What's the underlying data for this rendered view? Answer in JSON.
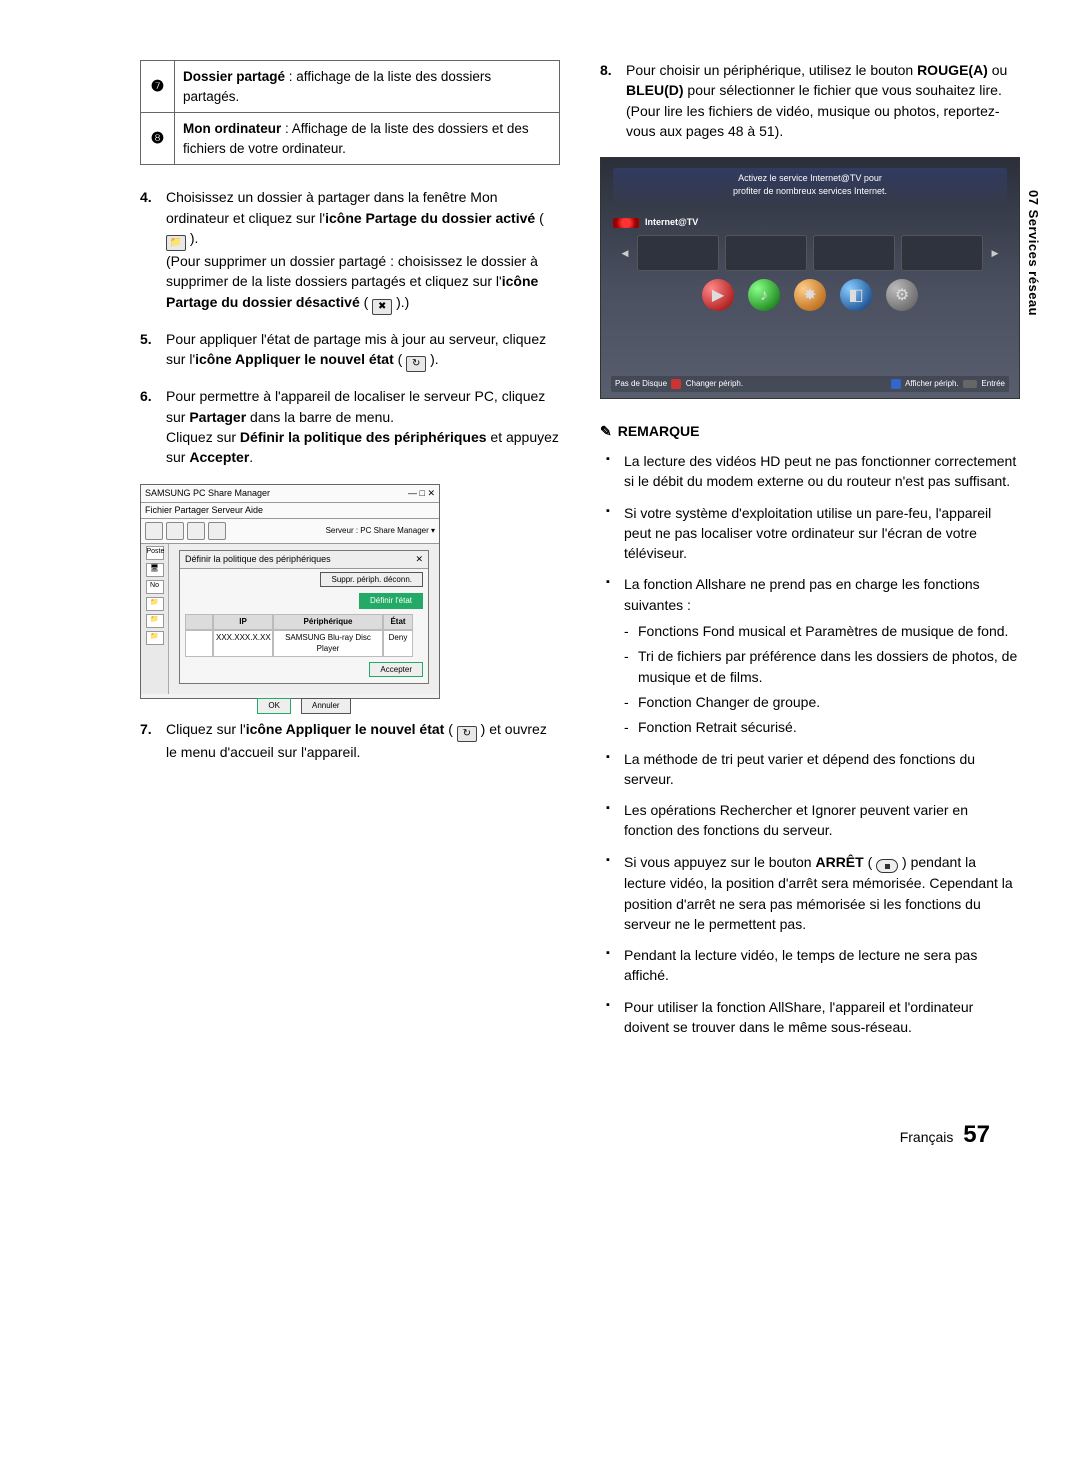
{
  "sideTab": "07  Services réseau",
  "leftTable": {
    "r1": {
      "num": "❼",
      "text_before": "Dossier partagé",
      "text_after": " : affichage de la liste des dossiers partagés."
    },
    "r2": {
      "num": "❽",
      "text_before": "Mon ordinateur",
      "text_after": " : Affichage de la liste des dossiers et des fichiers de votre ordinateur."
    }
  },
  "ol4": {
    "l1": "Choisissez un dossier à partager dans la fenêtre Mon ordinateur et cliquez sur l'",
    "b1": "icône Partage du dossier activé",
    "l2": "(Pour supprimer un dossier partagé : choisissez le dossier à supprimer de la liste dossiers partagés et cliquez sur l'",
    "b2": "icône Partage du dossier désactivé"
  },
  "ol5": {
    "l1": "Pour appliquer l'état de partage mis à jour au serveur, cliquez sur l'",
    "b1": "icône Appliquer le nouvel état"
  },
  "ol6": {
    "l1": "Pour permettre à l'appareil de localiser le serveur PC, cliquez sur ",
    "b1": "Partager",
    "l2": " dans la barre de menu.",
    "l3": "Cliquez sur ",
    "b2": "Définir la politique des périphériques",
    "l4": " et appuyez sur ",
    "b3": "Accepter",
    "l5": "."
  },
  "ol7": {
    "l1": "Cliquez sur l'",
    "b1": "icône Appliquer le nouvel état",
    "l2": " et ouvrez le menu d'accueil sur l'appareil."
  },
  "share": {
    "title": "SAMSUNG PC Share Manager",
    "menu": "Fichier  Partager  Serveur  Aide",
    "server": "Serveur : PC Share Manager  ▾",
    "sidebar": {
      "a": "Poste",
      "b": "No"
    },
    "dialogTitle": "Définir la politique des périphériques",
    "suppr": "Suppr. périph. déconn.",
    "defEtat": "Définir l'état",
    "hdr": {
      "c1": "",
      "c2": "IP",
      "c3": "Périphérique",
      "c4": "État"
    },
    "row": {
      "c1": "",
      "c2": "XXX.XXX.X.XX",
      "c3": "SAMSUNG Blu-ray Disc Player",
      "c4": "Deny"
    },
    "accepter": "Accepter",
    "ok": "OK",
    "annuler": "Annuler"
  },
  "ol8": {
    "l1": "Pour choisir un périphérique, utilisez le bouton ",
    "b1": "ROUGE(A)",
    "l2": " ou ",
    "b2": "BLEU(D)",
    "l3": " pour sélectionner le fichier que vous souhaitez lire.",
    "l4": "(Pour lire les fichiers de vidéo, musique ou photos, reportez-vous aux pages 48 à 51)."
  },
  "tv": {
    "promo1": "Activez le service Internet@TV pour",
    "promo2": "profiter de nombreux services Internet.",
    "itv": "Internet@TV",
    "barL": "Pas de Disque",
    "barM": "Changer périph.",
    "barR1": "Afficher périph.",
    "barR2": "Entrée"
  },
  "remarkTitle": "REMARQUE",
  "rm": {
    "b1": "La lecture des vidéos HD peut ne pas fonctionner correctement si le débit du modem externe ou du routeur n'est pas suffisant.",
    "b2": "Si votre système d'exploitation utilise un pare-feu, l'appareil peut ne pas localiser votre ordinateur sur l'écran de votre téléviseur.",
    "b3": "La fonction Allshare ne prend pas en charge les fonctions suivantes :",
    "s1": "Fonctions Fond musical et Paramètres de musique de fond.",
    "s2": "Tri de fichiers par préférence dans les dossiers de photos, de musique et de films.",
    "s3": "Fonction Changer de groupe.",
    "s4": "Fonction Retrait sécurisé.",
    "b4": "La méthode de tri peut varier et dépend des fonctions du serveur.",
    "b5": "Les opérations Rechercher et Ignorer peuvent varier en fonction des fonctions du serveur.",
    "b6a": "Si vous appuyez sur le bouton ",
    "b6b": "ARRÊT",
    "b6c": " pendant la lecture vidéo, la position d'arrêt sera mémorisée. Cependant la position d'arrêt ne sera pas mémorisée si les fonctions du serveur ne le permettent pas.",
    "b7": "Pendant la lecture vidéo, le temps de lecture ne sera pas affiché.",
    "b8": "Pour utiliser la fonction AllShare, l'appareil et l'ordinateur doivent se trouver dans le même sous-réseau."
  },
  "footer": {
    "lang": "Français",
    "page": "57"
  }
}
